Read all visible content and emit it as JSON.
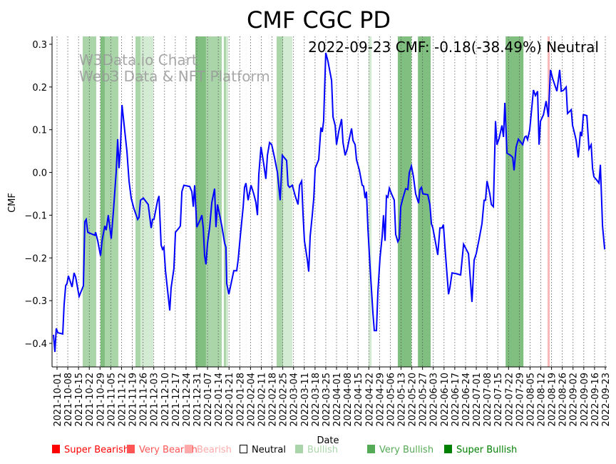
{
  "chart_data": {
    "type": "line",
    "title": "CMF CGC PD",
    "xlabel": "Date",
    "ylabel": "CMF",
    "annotation": "2022-09-23 CMF: -0.18(-38.49%) Neutral",
    "watermark": [
      "W3Data.io Chart",
      "Web3 Data & NFT Platform"
    ],
    "start_date": "2021-10-01",
    "ylim": [
      -0.46,
      0.315
    ],
    "xlim_days": [
      -3,
      357
    ],
    "yticks": [
      0.3,
      0.2,
      0.1,
      0.0,
      -0.1,
      -0.2,
      -0.3,
      -0.4
    ],
    "ytick_labels": [
      "0.3",
      "0.2",
      "0.1",
      "0.0",
      "−0.1",
      "−0.2",
      "−0.3",
      "−0.4"
    ],
    "xtick_labels": [
      "2021-10-01",
      "2021-10-08",
      "2021-10-15",
      "2021-10-22",
      "2021-10-29",
      "2021-11-05",
      "2021-11-12",
      "2021-11-19",
      "2021-11-26",
      "2021-12-03",
      "2021-12-10",
      "2021-12-17",
      "2021-12-24",
      "2021-12-31",
      "2022-01-07",
      "2022-01-14",
      "2022-01-21",
      "2022-01-28",
      "2022-02-04",
      "2022-02-11",
      "2022-02-18",
      "2022-02-25",
      "2022-03-04",
      "2022-03-11",
      "2022-03-18",
      "2022-03-25",
      "2022-04-01",
      "2022-04-08",
      "2022-04-15",
      "2022-04-22",
      "2022-04-29",
      "2022-05-06",
      "2022-05-13",
      "2022-05-20",
      "2022-05-27",
      "2022-06-03",
      "2022-06-10",
      "2022-06-17",
      "2022-06-24",
      "2022-07-01",
      "2022-07-08",
      "2022-07-15",
      "2022-07-22",
      "2022-07-29",
      "2022-08-05",
      "2022-08-12",
      "2022-08-19",
      "2022-08-26",
      "2022-09-02",
      "2022-09-09",
      "2022-09-16",
      "2022-09-23"
    ],
    "series": [
      {
        "name": "CMF",
        "color": "#0000ff",
        "days": [
          -2.3,
          -1.4,
          -0.5,
          0.5,
          3.7,
          4.6,
          5.6,
          6.5,
          7.4,
          9.8,
          11.1,
          12.1,
          14.4,
          17.2,
          18.1,
          19.0,
          20.0,
          24.6,
          25.1,
          26.5,
          28.3,
          29.3,
          31.1,
          32.0,
          33.4,
          35.3,
          36.7,
          38.5,
          39.5,
          40.4,
          41.3,
          42.3,
          45.5,
          46.9,
          48.3,
          50.1,
          52.5,
          53.4,
          54.3,
          56.2,
          59.4,
          61.3,
          62.2,
          63.1,
          65.5,
          66.4,
          67.8,
          68.7,
          69.6,
          70.6,
          73.4,
          74.3,
          76.1,
          77.1,
          79.4,
          80.3,
          81.3,
          82.6,
          86.4,
          87.8,
          88.7,
          89.6,
          91.0,
          93.3,
          94.3,
          95.2,
          96.1,
          97.0,
          98.0,
          99.4,
          100.8,
          102.6,
          103.5,
          104.5,
          105.9,
          107.3,
          109.1,
          110.0,
          110.5,
          111.9,
          115.1,
          117.0,
          117.9,
          119.3,
          121.2,
          122.1,
          123.0,
          124.4,
          126.3,
          128.1,
          129.5,
          130.5,
          131.4,
          132.8,
          134.6,
          136.0,
          137.0,
          138.4,
          139.8,
          141.6,
          143.5,
          145.3,
          146.7,
          149.5,
          150.4,
          151.4,
          153.2,
          155.1,
          156.9,
          157.9,
          159.3,
          160.2,
          161.1,
          163.0,
          163.9,
          164.8,
          166.2,
          167.2,
          168.1,
          170.4,
          171.8,
          172.7,
          173.6,
          175.0,
          176.4,
          178.8,
          179.7,
          181.1,
          182.0,
          183.4,
          185.3,
          186.2,
          187.6,
          189.0,
          190.4,
          191.8,
          192.7,
          194.1,
          195.0,
          196.9,
          198.7,
          199.6,
          200.6,
          201.5,
          202.4,
          203.8,
          205.7,
          206.6,
          208.0,
          208.9,
          210.3,
          211.7,
          212.6,
          213.6,
          214.5,
          215.4,
          216.4,
          217.8,
          219.6,
          220.5,
          221.9,
          222.9,
          223.8,
          225.2,
          227.0,
          228.4,
          229.4,
          230.8,
          232.1,
          233.5,
          235.4,
          236.3,
          237.3,
          238.2,
          241.4,
          242.8,
          243.8,
          244.7,
          246.5,
          247.9,
          249.3,
          250.7,
          251.6,
          252.6,
          254.9,
          255.8,
          257.2,
          260.0,
          262.8,
          264.7,
          266.5,
          267.9,
          270.2,
          271.6,
          273.0,
          274.9,
          276.7,
          278.1,
          279.0,
          280.0,
          281.8,
          282.8,
          284.1,
          285.5,
          286.5,
          287.9,
          289.7,
          290.7,
          291.6,
          293.0,
          295.3,
          296.7,
          297.6,
          299.0,
          300.4,
          303.2,
          304.6,
          305.5,
          306.4,
          307.8,
          310.2,
          311.5,
          312.9,
          313.9,
          314.8,
          316.7,
          318.5,
          319.9,
          321.3,
          322.7,
          325.5,
          327.3,
          328.3,
          329.7,
          331.5,
          332.4,
          333.8,
          334.8,
          335.7,
          337.1,
          338.0,
          339.4,
          340.8,
          341.7,
          342.7,
          344.1,
          345.0,
          346.4,
          347.8,
          348.7,
          349.6,
          351.5,
          352.9,
          353.8,
          355.2,
          356.6
        ],
        "values": [
          -0.38,
          -0.42,
          -0.365,
          -0.375,
          -0.378,
          -0.31,
          -0.265,
          -0.26,
          -0.242,
          -0.268,
          -0.235,
          -0.245,
          -0.29,
          -0.265,
          -0.115,
          -0.11,
          -0.14,
          -0.147,
          -0.14,
          -0.16,
          -0.195,
          -0.16,
          -0.125,
          -0.135,
          -0.1,
          -0.155,
          -0.09,
          0.0,
          0.078,
          0.01,
          0.06,
          0.158,
          0.05,
          -0.02,
          -0.06,
          -0.085,
          -0.11,
          -0.105,
          -0.065,
          -0.06,
          -0.075,
          -0.13,
          -0.11,
          -0.11,
          -0.065,
          -0.055,
          -0.17,
          -0.18,
          -0.175,
          -0.23,
          -0.323,
          -0.27,
          -0.225,
          -0.14,
          -0.13,
          -0.125,
          -0.045,
          -0.03,
          -0.033,
          -0.045,
          -0.08,
          -0.03,
          -0.128,
          -0.11,
          -0.1,
          -0.13,
          -0.195,
          -0.215,
          -0.165,
          -0.128,
          -0.07,
          -0.038,
          -0.128,
          -0.075,
          -0.1,
          -0.125,
          -0.165,
          -0.175,
          -0.26,
          -0.285,
          -0.23,
          -0.23,
          -0.205,
          -0.15,
          -0.08,
          -0.035,
          -0.025,
          -0.065,
          -0.03,
          -0.05,
          -0.07,
          -0.1,
          -0.005,
          0.06,
          0.02,
          -0.015,
          0.04,
          0.07,
          0.065,
          0.035,
          0.0,
          -0.065,
          0.04,
          0.028,
          -0.03,
          -0.035,
          -0.03,
          -0.055,
          -0.075,
          -0.03,
          -0.02,
          -0.1,
          -0.16,
          -0.205,
          -0.232,
          -0.15,
          -0.1,
          -0.06,
          0.01,
          0.03,
          0.105,
          0.095,
          0.12,
          0.28,
          0.26,
          0.215,
          0.13,
          0.11,
          0.065,
          0.095,
          0.125,
          0.07,
          0.04,
          0.055,
          0.08,
          0.103,
          0.075,
          0.065,
          0.03,
          0.005,
          -0.03,
          -0.032,
          -0.06,
          -0.045,
          -0.13,
          -0.22,
          -0.33,
          -0.37,
          -0.37,
          -0.28,
          -0.2,
          -0.15,
          -0.1,
          -0.16,
          -0.055,
          -0.058,
          -0.037,
          -0.05,
          -0.065,
          -0.145,
          -0.162,
          -0.155,
          -0.08,
          -0.06,
          -0.038,
          -0.04,
          0.0,
          0.015,
          -0.01,
          -0.05,
          -0.072,
          -0.04,
          -0.035,
          -0.05,
          -0.052,
          -0.075,
          -0.12,
          -0.13,
          -0.165,
          -0.193,
          -0.13,
          -0.13,
          -0.122,
          -0.175,
          -0.285,
          -0.27,
          -0.235,
          -0.237,
          -0.24,
          -0.168,
          -0.18,
          -0.19,
          -0.303,
          -0.205,
          -0.19,
          -0.155,
          -0.12,
          -0.065,
          -0.065,
          -0.02,
          -0.05,
          -0.075,
          -0.08,
          0.12,
          0.065,
          0.08,
          0.11,
          0.083,
          0.163,
          0.045,
          0.04,
          0.035,
          0.005,
          0.06,
          0.078,
          0.065,
          0.083,
          0.085,
          0.077,
          0.1,
          0.193,
          0.18,
          0.19,
          0.065,
          0.12,
          0.135,
          0.167,
          0.13,
          0.24,
          0.22,
          0.19,
          0.24,
          0.19,
          0.192,
          0.2,
          0.138,
          0.143,
          0.147,
          0.11,
          0.09,
          0.075,
          0.035,
          0.095,
          0.085,
          0.135,
          0.134,
          0.133,
          0.055,
          0.065,
          0.01,
          -0.01,
          -0.018,
          -0.025,
          0.018,
          -0.125,
          -0.18
        ]
      }
    ],
    "bands": [
      {
        "start": 16.7,
        "end": 25.5,
        "level": "mid"
      },
      {
        "start": 28.3,
        "end": 31.1,
        "level": "dark"
      },
      {
        "start": 31.1,
        "end": 39.9,
        "level": "mid"
      },
      {
        "start": 51.1,
        "end": 54.3,
        "level": "mid"
      },
      {
        "start": 54.3,
        "end": 62.7,
        "level": "light"
      },
      {
        "start": 90.1,
        "end": 97.0,
        "level": "dark"
      },
      {
        "start": 97.0,
        "end": 107.3,
        "level": "mid"
      },
      {
        "start": 108.6,
        "end": 110.0,
        "level": "mid"
      },
      {
        "start": 110.0,
        "end": 111.4,
        "level": "light"
      },
      {
        "start": 143.0,
        "end": 147.2,
        "level": "mid"
      },
      {
        "start": 147.2,
        "end": 153.2,
        "level": "light"
      },
      {
        "start": 202.9,
        "end": 204.8,
        "level": "light"
      },
      {
        "start": 221.9,
        "end": 230.8,
        "level": "dark"
      },
      {
        "start": 235.0,
        "end": 243.3,
        "level": "dark"
      },
      {
        "start": 292.1,
        "end": 303.7,
        "level": "dark"
      },
      {
        "start": 319.4,
        "end": 320.8,
        "level": "bearish"
      }
    ],
    "band_colors": {
      "light": "#d3ead3",
      "mid": "#a9d5a9",
      "dark": "#80bf80",
      "bearish": "#f8b8b8"
    },
    "legend": {
      "placement": "bottom",
      "items": [
        {
          "label": "Super Bearish",
          "color": "#ff0000",
          "text_color": "#ff0000"
        },
        {
          "label": "Very Bearish",
          "color": "#ff5555",
          "text_color": "#ff5555"
        },
        {
          "label": "Bearish",
          "color": "#ffaaaa",
          "text_color": "#ffaaaa"
        },
        {
          "label": "Neutral",
          "color": "none",
          "text_color": "#000000"
        },
        {
          "label": "Bullish",
          "color": "#aad5aa",
          "text_color": "#aad5aa"
        },
        {
          "label": "Very Bullish",
          "color": "#55aa55",
          "text_color": "#55aa55"
        },
        {
          "label": "Super Bullish",
          "color": "#008000",
          "text_color": "#008000"
        }
      ]
    }
  }
}
